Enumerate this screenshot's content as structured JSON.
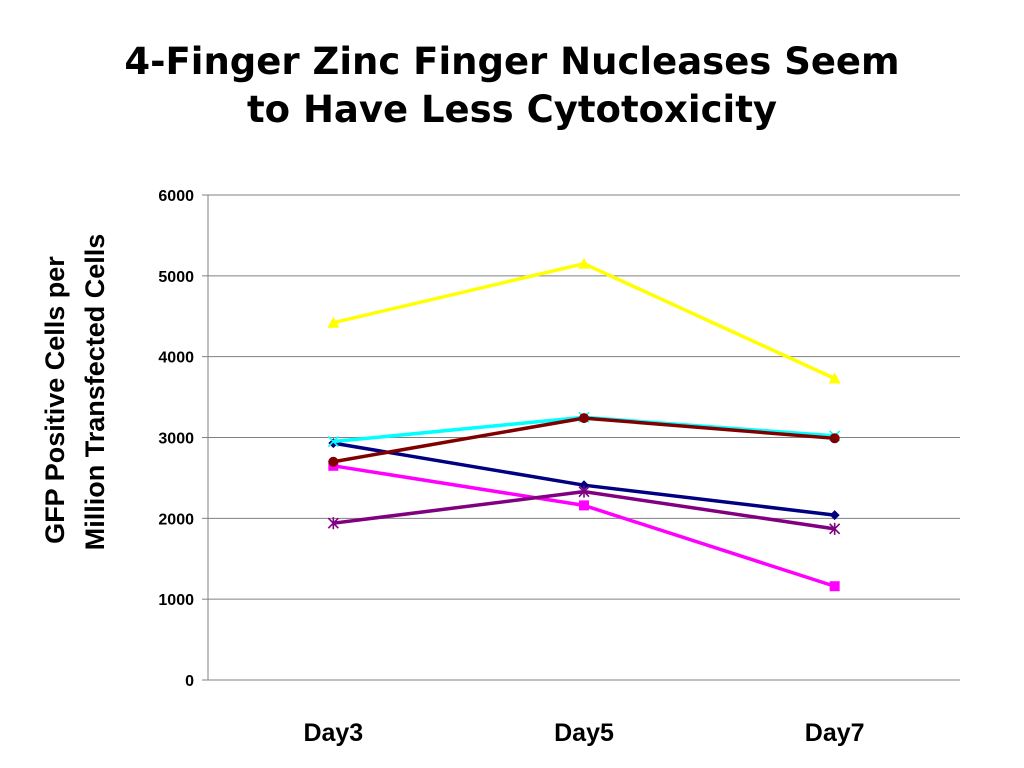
{
  "title_lines": [
    "4-Finger Zinc Finger Nucleases Seem",
    "to Have Less Cytotoxicity"
  ],
  "chart_data": {
    "type": "line",
    "title": "4-Finger Zinc Finger Nucleases Seem to Have Less Cytotoxicity",
    "xlabel": "",
    "ylabel": "GFP Positive Cells per Million Transfected Cells",
    "ylabel_lines": [
      "GFP Positive Cells per",
      "Million Transfected Cells"
    ],
    "categories": [
      "Day3",
      "Day5",
      "Day7"
    ],
    "ylim": [
      0,
      6000
    ],
    "yticks": [
      0,
      1000,
      2000,
      3000,
      4000,
      5000,
      6000
    ],
    "grid": true,
    "legend": "none",
    "series": [
      {
        "color": "#000080",
        "marker": "diamond",
        "values": [
          2930,
          2410,
          2040
        ]
      },
      {
        "color": "#FF00FF",
        "marker": "square",
        "values": [
          2650,
          2160,
          1160
        ]
      },
      {
        "color": "#FFFF00",
        "marker": "triangle",
        "values": [
          4420,
          5150,
          3730
        ]
      },
      {
        "color": "#00FFFF",
        "marker": "x",
        "values": [
          2950,
          3250,
          3020
        ]
      },
      {
        "color": "#800080",
        "marker": "star",
        "values": [
          1940,
          2330,
          1870
        ]
      },
      {
        "color": "#800000",
        "marker": "circle",
        "values": [
          2700,
          3240,
          2990
        ]
      }
    ]
  }
}
